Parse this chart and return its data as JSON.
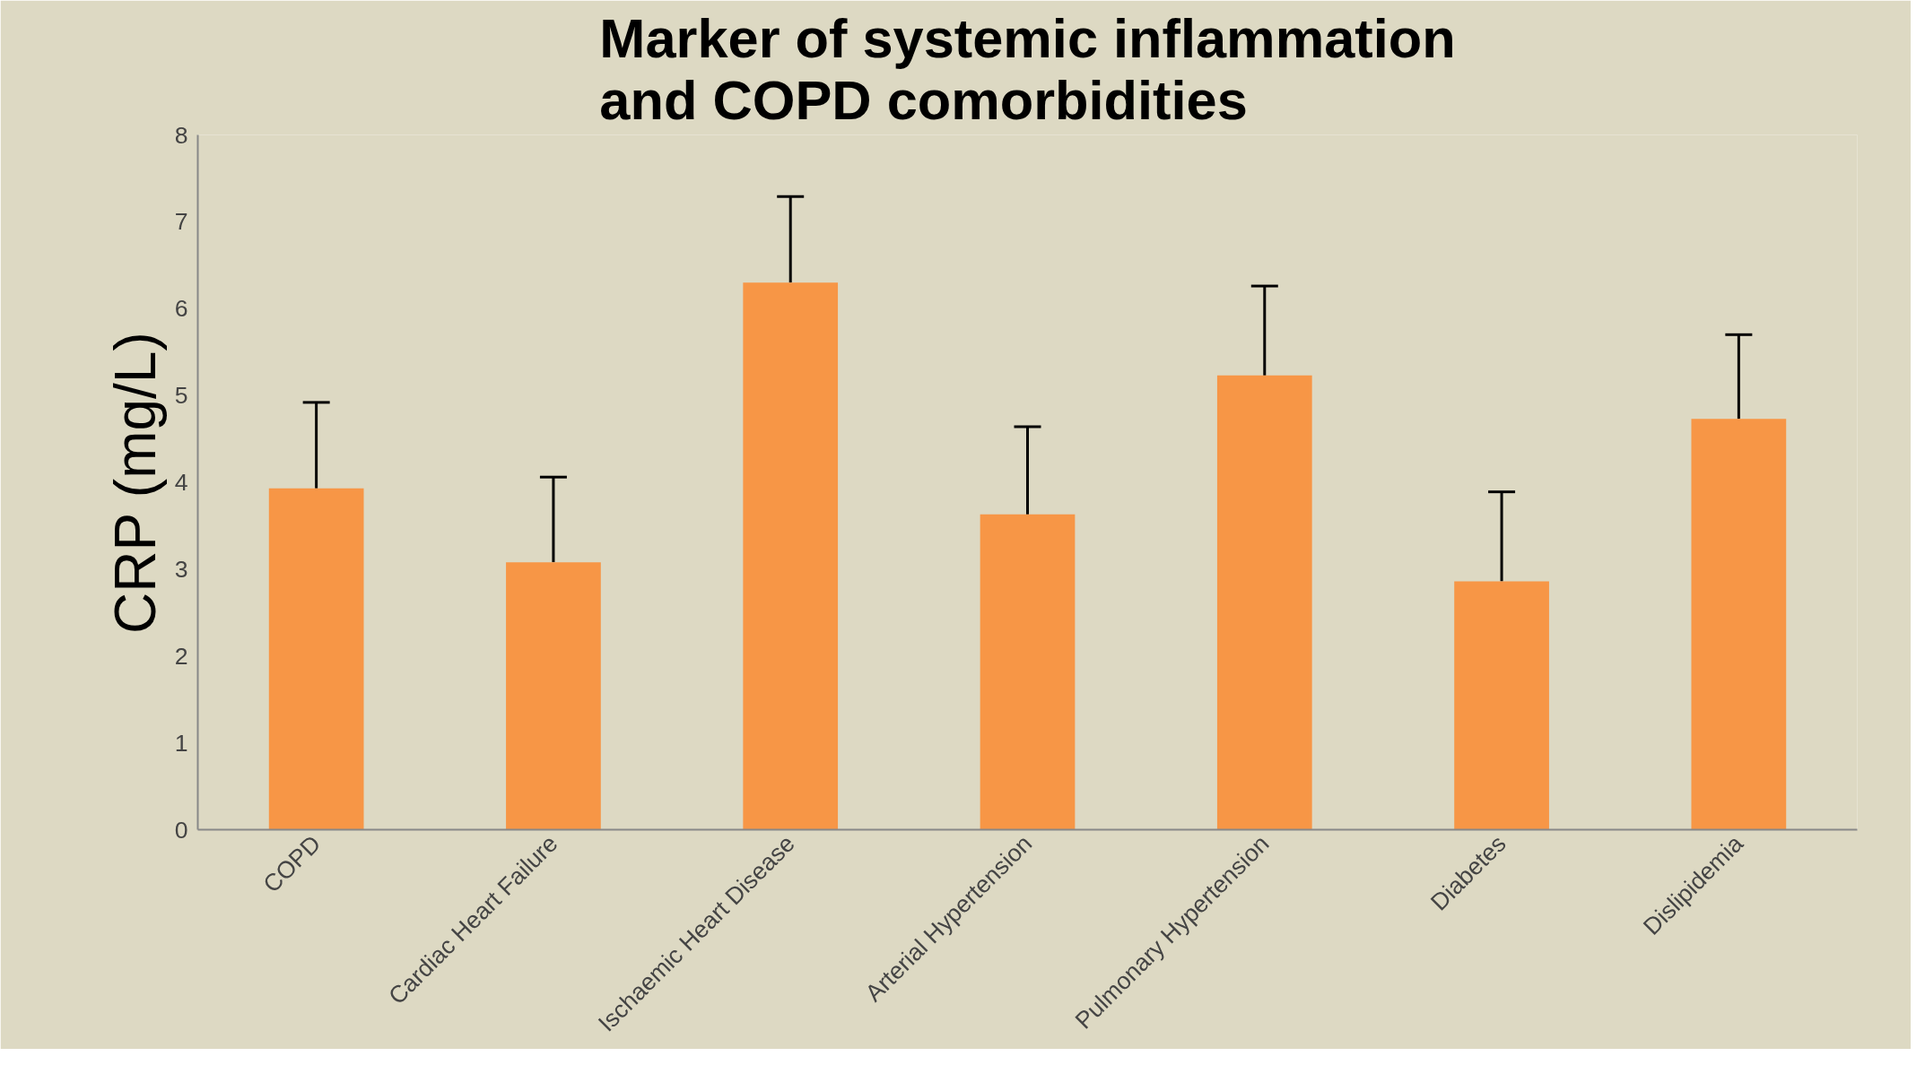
{
  "chart_data": {
    "type": "bar",
    "title": "Marker of systemic inflammation\nand COPD comorbidities",
    "ylabel": "CRP (mg/L)",
    "categories": [
      "COPD",
      "Cardiac Heart Failure",
      "Ischaemic Heart Disease",
      "Arterial Hypertension",
      "Pulmonary Hypertension",
      "Diabetes",
      "Dislipidemia"
    ],
    "values": [
      3.93,
      3.08,
      6.3,
      3.63,
      5.23,
      2.86,
      4.73
    ],
    "errors": [
      [
        3.93,
        4.92
      ],
      [
        3.08,
        4.06
      ],
      [
        6.3,
        7.29
      ],
      [
        3.63,
        4.64
      ],
      [
        5.23,
        6.26
      ],
      [
        2.86,
        3.89
      ],
      [
        4.73,
        5.7
      ]
    ],
    "color": "#f79646",
    "ylim": [
      0,
      8
    ],
    "yticks": [
      0,
      1,
      2,
      3,
      4,
      5,
      6,
      7,
      8
    ],
    "grid": false
  }
}
